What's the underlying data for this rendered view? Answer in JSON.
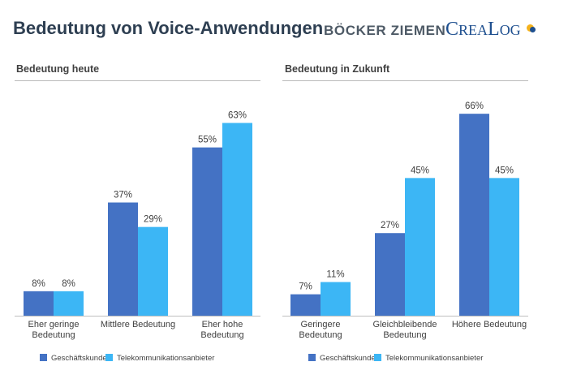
{
  "header": {
    "title": "Bedeutung von Voice-Anwendungen",
    "brand_primary": "BÖCKER ZIEMEN",
    "brand_secondary_cap1": "C",
    "brand_secondary_rest1": "REA",
    "brand_secondary_cap2": "L",
    "brand_secondary_rest2": "OG"
  },
  "colors": {
    "series_1": "#4472c4",
    "series_2": "#3cb6f5",
    "title": "#2e3f52",
    "brand": "#1e4f8f",
    "brand_accent": "#f5b21b"
  },
  "chart_data": [
    {
      "type": "bar",
      "title": "Bedeutung heute",
      "categories": [
        [
          "Eher geringe",
          "Bedeutung"
        ],
        [
          "Mittlere Bedeutung"
        ],
        [
          "Eher hohe",
          "Bedeutung"
        ]
      ],
      "series": [
        {
          "name": "Geschäftskunden",
          "values": [
            8,
            37,
            55
          ]
        },
        {
          "name": "Telekommunikationsanbieter",
          "values": [
            8,
            29,
            63
          ]
        }
      ],
      "value_suffix": "%",
      "ylim": [
        0,
        70
      ],
      "grid": false,
      "legend_position": "bottom"
    },
    {
      "type": "bar",
      "title": "Bedeutung in Zukunft",
      "categories": [
        [
          "Geringere",
          "Bedeutung"
        ],
        [
          "Gleichbleibende",
          "Bedeutung"
        ],
        [
          "Höhere Bedeutung"
        ]
      ],
      "series": [
        {
          "name": "Geschäftskunden",
          "values": [
            7,
            27,
            66
          ]
        },
        {
          "name": "Telekommunikationsanbieter",
          "values": [
            11,
            45,
            45
          ]
        }
      ],
      "value_suffix": "%",
      "ylim": [
        0,
        70
      ],
      "grid": false,
      "legend_position": "bottom"
    }
  ]
}
